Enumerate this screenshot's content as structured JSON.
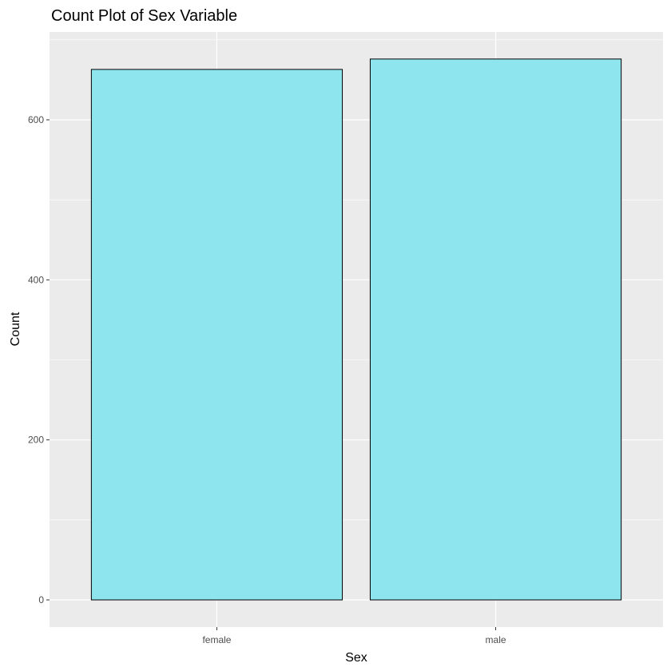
{
  "chart_data": {
    "type": "bar",
    "title": "Count Plot of Sex Variable",
    "xlabel": "Sex",
    "ylabel": "Count",
    "categories": [
      "female",
      "male"
    ],
    "values": [
      663,
      676
    ],
    "ylim": [
      0,
      700
    ],
    "yticks": [
      0,
      200,
      400,
      600
    ],
    "grid": true,
    "legend": "none",
    "colors": {
      "bar_fill": "#8FE5EE",
      "bar_stroke": "#000000",
      "panel_background": "#EBEBEB",
      "grid_major": "#FFFFFF",
      "tick_text": "#4D4D4D"
    }
  }
}
